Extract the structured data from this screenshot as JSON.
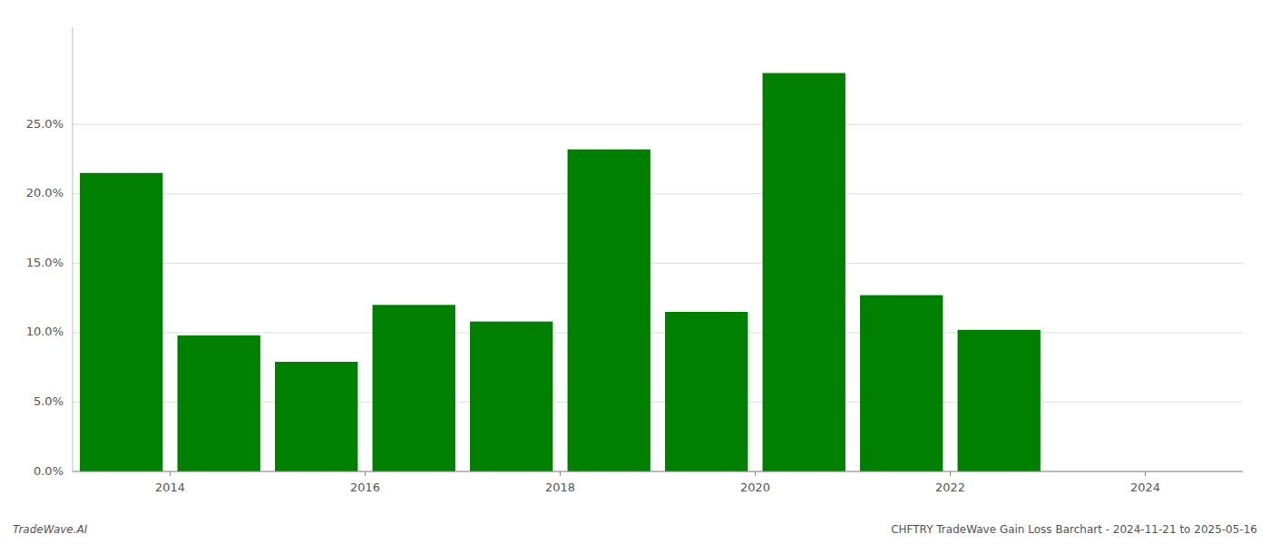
{
  "chart_data": {
    "type": "bar",
    "x": [
      2013.5,
      2014.5,
      2015.5,
      2016.5,
      2017.5,
      2018.5,
      2019.5,
      2020.5,
      2021.5,
      2022.5
    ],
    "values": [
      0.215,
      0.098,
      0.079,
      0.12,
      0.108,
      0.232,
      0.115,
      0.287,
      0.127,
      0.102
    ],
    "color": "#008000",
    "xlim": [
      2013.0,
      2025.0
    ],
    "xticks": [
      2014,
      2016,
      2018,
      2020,
      2022,
      2024
    ],
    "ylim": [
      0,
      0.32
    ],
    "yticks": [
      {
        "value": 0.0,
        "label": "0.0%"
      },
      {
        "value": 0.05,
        "label": "5.0%"
      },
      {
        "value": 0.1,
        "label": "10.0%"
      },
      {
        "value": 0.15,
        "label": "15.0%"
      },
      {
        "value": 0.2,
        "label": "20.0%"
      },
      {
        "value": 0.25,
        "label": "25.0%"
      }
    ],
    "grid": true,
    "annotations": [
      "TradeWave.AI",
      "CHFTRY TradeWave Gain Loss Barchart - 2024-11-21 to 2025-05-16"
    ]
  }
}
